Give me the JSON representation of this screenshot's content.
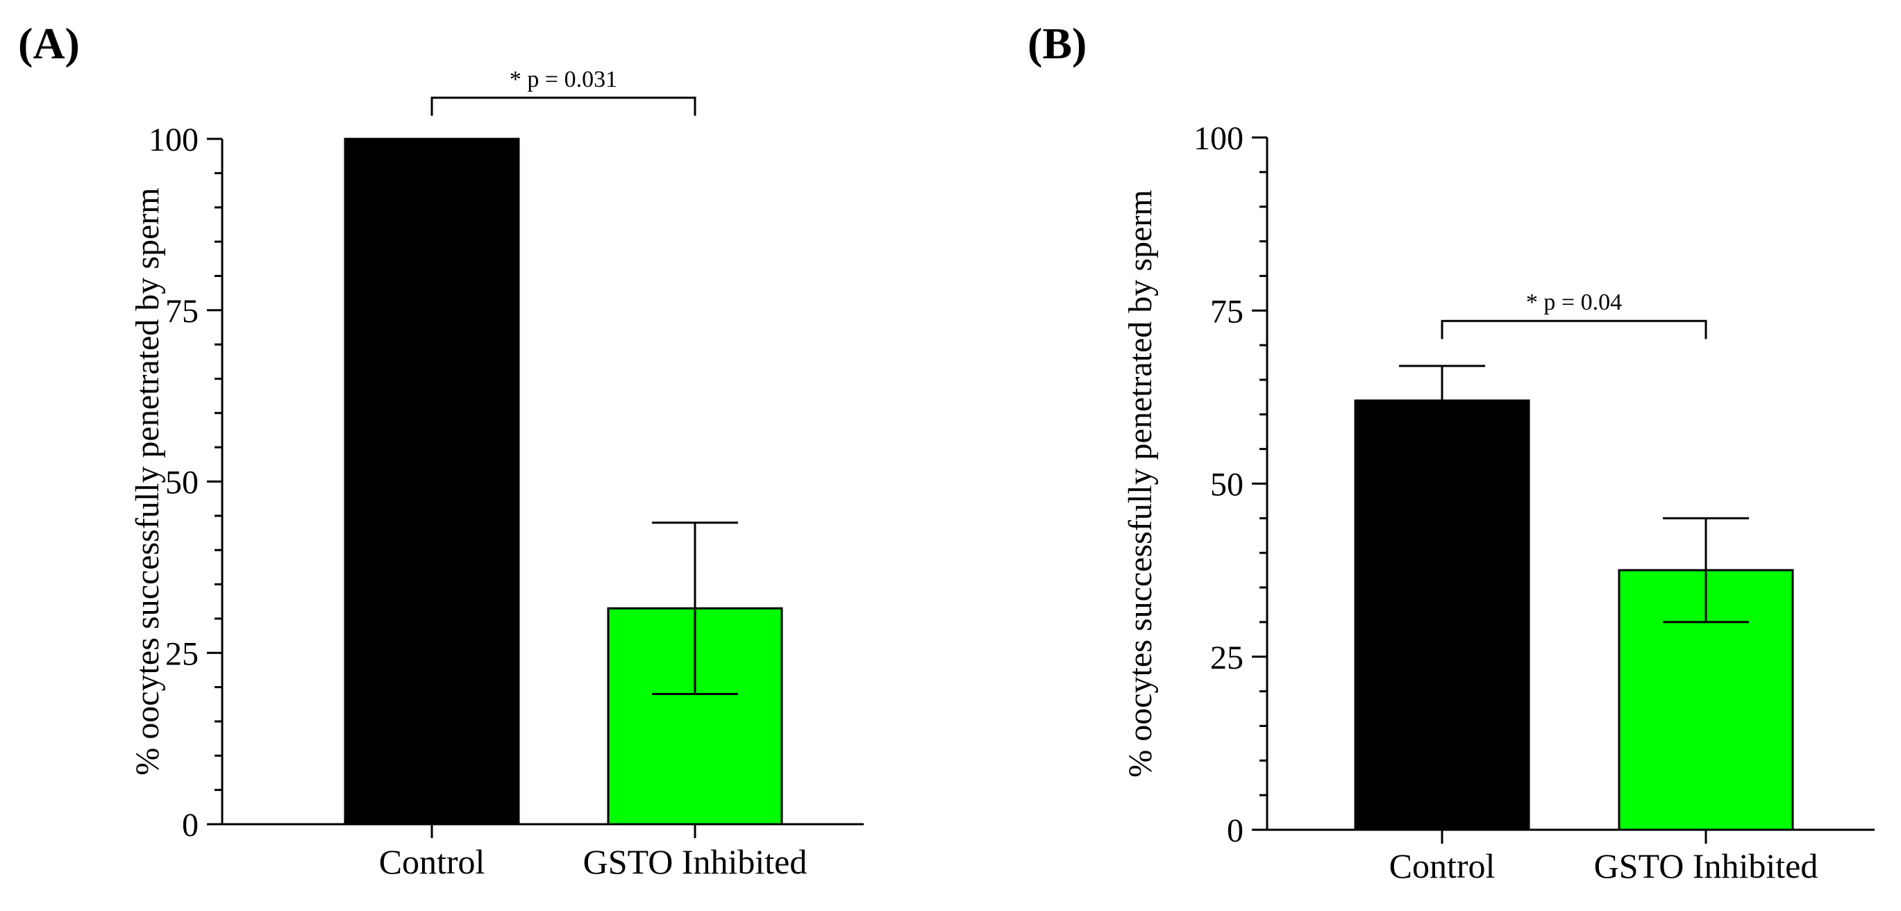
{
  "figure": {
    "panels": [
      "(A)",
      "(B)"
    ]
  },
  "chart_data": [
    {
      "type": "bar",
      "panel_label": "(A)",
      "ylabel": "% oocytes successfully penetrated by sperm",
      "xlabel": "",
      "ylim": [
        0,
        100
      ],
      "yticks": [
        0,
        25,
        50,
        75,
        100
      ],
      "ytick_labels": [
        "0",
        "25",
        "50",
        "75",
        "100"
      ],
      "minor_tick_step": 5,
      "categories": [
        "Control",
        "GSTO Inhibited"
      ],
      "values": [
        100,
        31.5
      ],
      "error_low": [
        100,
        19
      ],
      "error_high": [
        100,
        44
      ],
      "colors": [
        "#000000",
        "#00ff00"
      ],
      "significance": {
        "between": [
          0,
          1
        ],
        "label": "* p = 0.031",
        "at_value": 106
      }
    },
    {
      "type": "bar",
      "panel_label": "(B)",
      "ylabel": "% oocytes successfully penetrated by sperm",
      "xlabel": "",
      "ylim": [
        0,
        100
      ],
      "yticks": [
        0,
        25,
        50,
        75,
        100
      ],
      "ytick_labels": [
        "0",
        "25",
        "50",
        "75",
        "100"
      ],
      "minor_tick_step": 5,
      "categories": [
        "Control",
        "GSTO Inhibited"
      ],
      "values": [
        62,
        37.5
      ],
      "error_low": [
        57,
        30
      ],
      "error_high": [
        67,
        45
      ],
      "colors": [
        "#000000",
        "#00ff00"
      ],
      "significance": {
        "between": [
          0,
          1
        ],
        "label": "* p = 0.04",
        "at_value": 73.5
      }
    }
  ]
}
